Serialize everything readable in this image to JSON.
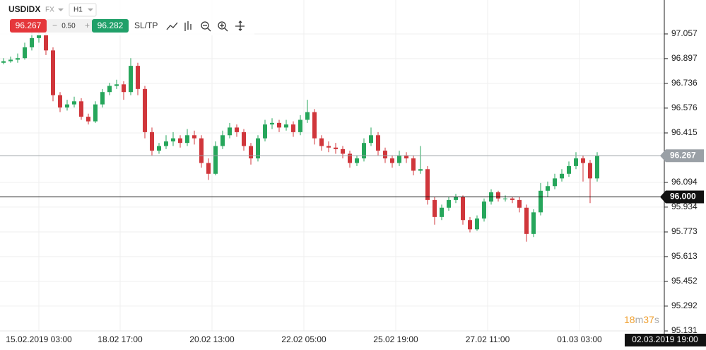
{
  "header": {
    "symbol": "USDIDX",
    "market": "FX",
    "timeframe": "H1",
    "sell": "96.267",
    "minus": "−",
    "spread": "0.50",
    "plus": "+",
    "buy": "96.282",
    "sltp": "SL/TP"
  },
  "chart_data": {
    "type": "candlestick",
    "up_color": "#26a65b",
    "down_color": "#d0363b",
    "ylim": [
      95.122,
      97.277
    ],
    "yticks": [
      97.057,
      96.897,
      96.736,
      96.576,
      96.415,
      96.094,
      95.934,
      95.773,
      95.613,
      95.452,
      95.292,
      95.131
    ],
    "grid": true,
    "x_labels": [
      "15.02.2019 03:00",
      "18.02 17:00",
      "20.02 13:00",
      "22.02 05:00",
      "25.02 19:00",
      "27.02 11:00",
      "01.03 03:00"
    ],
    "price_lines": [
      {
        "value": 96.267,
        "color": "#9aa0a6"
      },
      {
        "value": 96,
        "label": "96.000",
        "color": "#111111"
      }
    ],
    "current_time": "02.03.2019 19:00",
    "timer": [
      "18",
      "m",
      "37",
      "s"
    ],
    "candles": [
      [
        96.87,
        96.9,
        96.86,
        96.88
      ],
      [
        96.88,
        96.91,
        96.87,
        96.89
      ],
      [
        96.89,
        96.93,
        96.87,
        96.9
      ],
      [
        96.9,
        97.0,
        96.89,
        96.97
      ],
      [
        96.97,
        97.07,
        96.95,
        97.03
      ],
      [
        97.03,
        97.12,
        97.0,
        97.05
      ],
      [
        97.05,
        97.08,
        96.92,
        96.95
      ],
      [
        96.95,
        96.97,
        96.62,
        96.66
      ],
      [
        96.66,
        96.68,
        96.55,
        96.58
      ],
      [
        96.58,
        96.63,
        96.56,
        96.6
      ],
      [
        96.6,
        96.65,
        96.58,
        96.62
      ],
      [
        96.62,
        96.64,
        96.5,
        96.52
      ],
      [
        96.52,
        96.54,
        96.47,
        96.49
      ],
      [
        96.49,
        96.62,
        96.48,
        96.6
      ],
      [
        96.6,
        96.7,
        96.58,
        96.68
      ],
      [
        96.68,
        96.74,
        96.66,
        96.72
      ],
      [
        96.72,
        96.76,
        96.7,
        96.73
      ],
      [
        96.73,
        96.75,
        96.63,
        96.68
      ],
      [
        96.68,
        96.9,
        96.66,
        96.85
      ],
      [
        96.85,
        96.87,
        96.66,
        96.7
      ],
      [
        96.7,
        96.72,
        96.38,
        96.42
      ],
      [
        96.42,
        96.45,
        96.27,
        96.3
      ],
      [
        96.3,
        96.35,
        96.28,
        96.33
      ],
      [
        96.33,
        96.4,
        96.31,
        96.36
      ],
      [
        96.36,
        96.42,
        96.33,
        96.38
      ],
      [
        96.38,
        96.4,
        96.32,
        96.35
      ],
      [
        96.35,
        96.44,
        96.33,
        96.4
      ],
      [
        96.4,
        96.43,
        96.34,
        96.38
      ],
      [
        96.38,
        96.4,
        96.19,
        96.22
      ],
      [
        96.22,
        96.25,
        96.11,
        96.15
      ],
      [
        96.15,
        96.36,
        96.14,
        96.33
      ],
      [
        96.33,
        96.43,
        96.31,
        96.4
      ],
      [
        96.4,
        96.48,
        96.38,
        96.45
      ],
      [
        96.45,
        96.47,
        96.39,
        96.42
      ],
      [
        96.42,
        96.44,
        96.3,
        96.33
      ],
      [
        96.33,
        96.35,
        96.21,
        96.25
      ],
      [
        96.25,
        96.4,
        96.23,
        96.38
      ],
      [
        96.38,
        96.5,
        96.36,
        96.47
      ],
      [
        96.47,
        96.51,
        96.44,
        96.48
      ],
      [
        96.48,
        96.5,
        96.42,
        96.45
      ],
      [
        96.45,
        96.5,
        96.43,
        96.47
      ],
      [
        96.47,
        96.49,
        96.39,
        96.42
      ],
      [
        96.42,
        96.53,
        96.4,
        96.5
      ],
      [
        96.5,
        96.63,
        96.48,
        96.55
      ],
      [
        96.55,
        96.57,
        96.34,
        96.38
      ],
      [
        96.38,
        96.4,
        96.3,
        96.33
      ],
      [
        96.33,
        96.36,
        96.29,
        96.32
      ],
      [
        96.32,
        96.35,
        96.28,
        96.31
      ],
      [
        96.31,
        96.33,
        96.25,
        96.28
      ],
      [
        96.28,
        96.3,
        96.19,
        96.22
      ],
      [
        96.22,
        96.27,
        96.2,
        96.25
      ],
      [
        96.25,
        96.38,
        96.23,
        96.35
      ],
      [
        96.35,
        96.45,
        96.33,
        96.4
      ],
      [
        96.4,
        96.42,
        96.27,
        96.3
      ],
      [
        96.3,
        96.32,
        96.22,
        96.25
      ],
      [
        96.25,
        96.27,
        96.19,
        96.22
      ],
      [
        96.22,
        96.3,
        96.2,
        96.27
      ],
      [
        96.27,
        96.29,
        96.22,
        96.25
      ],
      [
        96.25,
        96.27,
        96.14,
        96.17
      ],
      [
        96.17,
        96.33,
        96.15,
        96.18
      ],
      [
        96.18,
        96.2,
        95.95,
        95.98
      ],
      [
        95.98,
        96.0,
        95.82,
        95.87
      ],
      [
        95.87,
        95.95,
        95.85,
        95.93
      ],
      [
        95.93,
        96.0,
        95.91,
        95.98
      ],
      [
        95.98,
        96.02,
        95.96,
        96.0
      ],
      [
        96.0,
        96.01,
        95.82,
        95.85
      ],
      [
        95.85,
        95.87,
        95.77,
        95.79
      ],
      [
        95.79,
        95.88,
        95.78,
        95.86
      ],
      [
        95.86,
        95.99,
        95.84,
        95.97
      ],
      [
        95.97,
        96.05,
        95.95,
        96.03
      ],
      [
        96.03,
        96.04,
        95.97,
        95.99
      ],
      [
        95.99,
        96.01,
        95.97,
        95.99
      ],
      [
        95.99,
        96.0,
        95.96,
        95.98
      ],
      [
        95.98,
        96.0,
        95.9,
        95.93
      ],
      [
        95.93,
        95.95,
        95.71,
        95.76
      ],
      [
        95.76,
        95.92,
        95.74,
        95.9
      ],
      [
        95.9,
        96.09,
        95.88,
        96.04
      ],
      [
        96.04,
        96.1,
        96.0,
        96.07
      ],
      [
        96.07,
        96.15,
        96.05,
        96.12
      ],
      [
        96.12,
        96.18,
        96.1,
        96.15
      ],
      [
        96.15,
        96.23,
        96.13,
        96.2
      ],
      [
        96.2,
        96.29,
        96.18,
        96.25
      ],
      [
        96.25,
        96.27,
        96.1,
        96.22
      ],
      [
        96.22,
        96.24,
        95.96,
        96.12
      ],
      [
        96.12,
        96.29,
        96.1,
        96.267
      ]
    ]
  }
}
